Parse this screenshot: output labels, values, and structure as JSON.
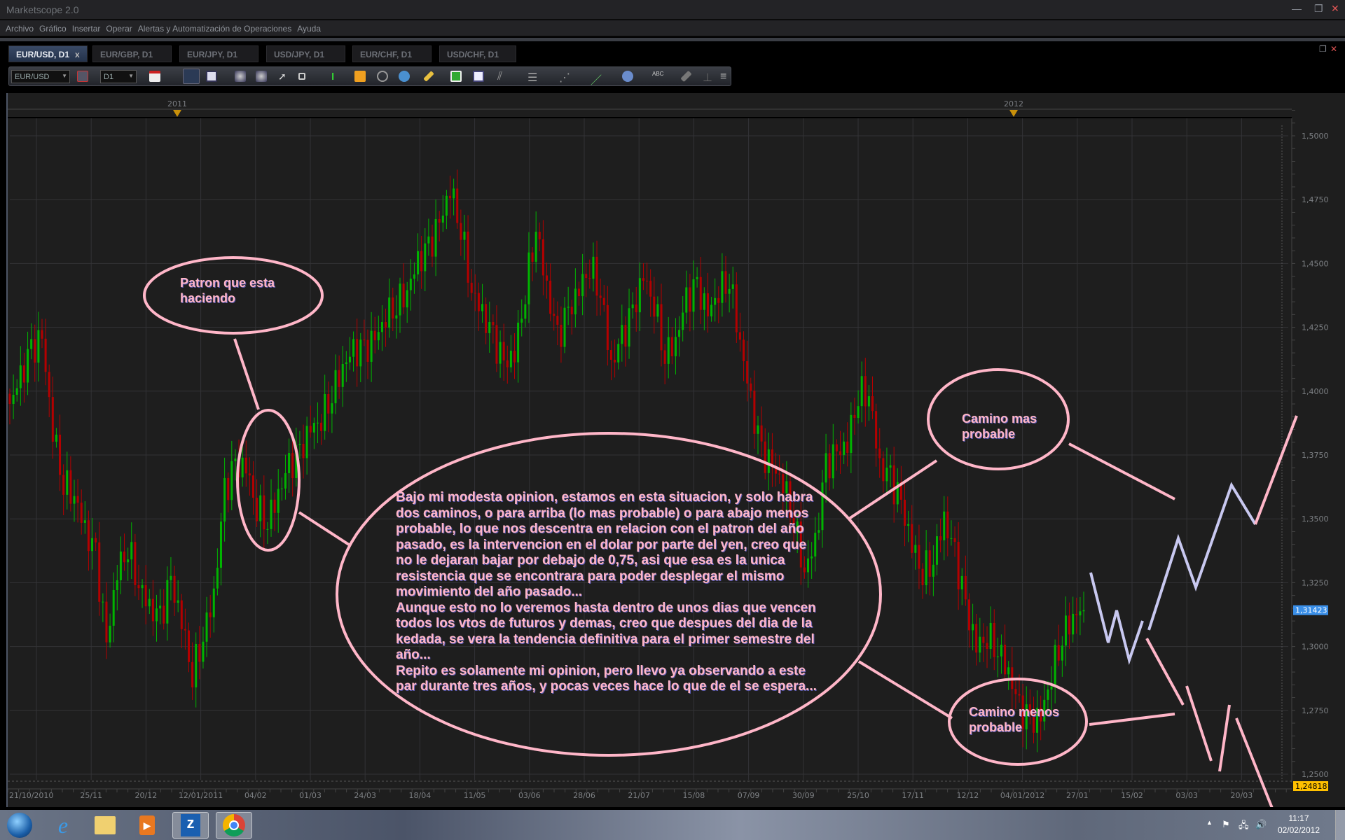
{
  "window": {
    "title": "Marketscope 2.0",
    "minimize": "—",
    "restore": "❐",
    "close": "✕"
  },
  "menu": [
    "Archivo",
    "Gráfico",
    "Insertar",
    "Operar",
    "Alertas y Automatización de Operaciones",
    "Ayuda"
  ],
  "tabs": [
    {
      "label": "EUR/USD, D1",
      "active": true,
      "close": "x"
    },
    {
      "label": "EUR/GBP, D1"
    },
    {
      "label": "EUR/JPY, D1"
    },
    {
      "label": "USD/JPY, D1"
    },
    {
      "label": "EUR/CHF, D1"
    },
    {
      "label": "USD/CHF, D1"
    }
  ],
  "toolbar": {
    "symbol": "EUR/USD",
    "timeframe": "D1"
  },
  "colors": {
    "background": "#1e1e1e",
    "grid": "#333336",
    "up": "#00b400",
    "down": "#b40000",
    "annotation": "#ffb6c8",
    "projection": "#c8c8f0",
    "last_price": "#3a8fe8",
    "low_marker": "#ffc000"
  },
  "chart_data": {
    "type": "candlestick",
    "symbol": "EUR/USD",
    "timeframe": "D1",
    "years": [
      "2011",
      "2012"
    ],
    "x_tick_labels": [
      "21/10/2010",
      "25/11",
      "20/12",
      "12/01/2011",
      "04/02",
      "01/03",
      "24/03",
      "18/04",
      "11/05",
      "03/06",
      "28/06",
      "21/07",
      "15/08",
      "07/09",
      "30/09",
      "25/10",
      "17/11",
      "12/12",
      "04/01/2012",
      "27/01",
      "15/02",
      "03/03",
      "20/03"
    ],
    "y_tick_labels": [
      "1,5000",
      "1,4750",
      "1,4500",
      "1,4250",
      "1,4000",
      "1,3750",
      "1,3500",
      "1,3250",
      "1,3000",
      "1,2750",
      "1,2500"
    ],
    "y_ticks": [
      1.5,
      1.475,
      1.45,
      1.425,
      1.4,
      1.375,
      1.35,
      1.325,
      1.3,
      1.275,
      1.25
    ],
    "ylim": [
      1.2475,
      1.5105
    ],
    "grid": true,
    "closes_every_3_bars": [
      1.395,
      1.405,
      1.415,
      1.42,
      1.385,
      1.365,
      1.36,
      1.345,
      1.335,
      1.3,
      1.33,
      1.34,
      1.325,
      1.315,
      1.31,
      1.325,
      1.31,
      1.29,
      1.305,
      1.32,
      1.36,
      1.37,
      1.37,
      1.355,
      1.35,
      1.36,
      1.37,
      1.375,
      1.385,
      1.39,
      1.4,
      1.41,
      1.415,
      1.415,
      1.42,
      1.43,
      1.435,
      1.44,
      1.45,
      1.455,
      1.465,
      1.48,
      1.465,
      1.44,
      1.43,
      1.42,
      1.41,
      1.415,
      1.44,
      1.465,
      1.44,
      1.42,
      1.43,
      1.44,
      1.45,
      1.44,
      1.41,
      1.42,
      1.43,
      1.445,
      1.435,
      1.415,
      1.42,
      1.435,
      1.44,
      1.43,
      1.44,
      1.445,
      1.42,
      1.395,
      1.375,
      1.37,
      1.365,
      1.35,
      1.33,
      1.34,
      1.37,
      1.375,
      1.38,
      1.4,
      1.4,
      1.37,
      1.365,
      1.355,
      1.34,
      1.33,
      1.335,
      1.35,
      1.335,
      1.315,
      1.3,
      1.305,
      1.3,
      1.29,
      1.275,
      1.27,
      1.272,
      1.29,
      1.305,
      1.312,
      1.31423
    ],
    "last_price": "1,31423",
    "low_price": "1,24818"
  },
  "annotations": {
    "pattern": "Patron que esta\nhaciendo",
    "main": "Bajo mi modesta opinion, estamos en esta situacion, y solo habra\ndos caminos, o para arriba (lo mas probable) o para abajo menos\nprobable, lo que nos descentra en relacion con el patron del año\npasado, es la intervencion en el dolar por parte del yen, creo que\nno le dejaran bajar por debajo de 0,75, asi que esa es la unica\nresistencia que se encontrara para poder desplegar el mismo\nmovimiento del año pasado...\nAunque esto no lo veremos hasta dentro de unos dias que vencen\ntodos los vtos de futuros y demas, creo que despues del dia de la\nkedada, se vera la tendencia definitiva para el primer semestre del\naño...\nRepito es solamente mi opinion, pero llevo ya observando a este\npar durante tres años, y pocas veces hace lo que de el se espera...",
    "up_path": "Camino mas\nprobable",
    "down_path": "Camino menos\nprobable"
  },
  "taskbar": {
    "apps": [
      "windows-start",
      "internet-explorer",
      "file-explorer",
      "media-player",
      "marketscope",
      "chrome"
    ],
    "time": "11:17",
    "date": "02/02/2012"
  }
}
